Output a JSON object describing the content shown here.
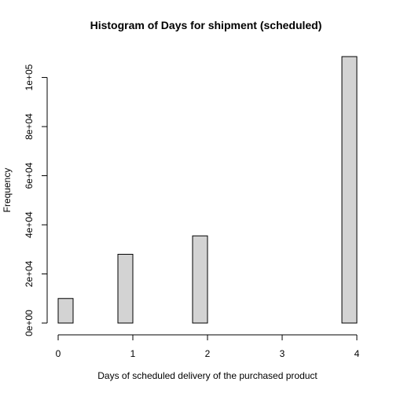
{
  "chart_data": {
    "type": "bar",
    "title": "Histogram of Days for shipment (scheduled)",
    "xlabel": "Days of scheduled delivery of the purchased product",
    "ylabel": "Frequency",
    "xlim": [
      0,
      4
    ],
    "ylim": [
      0,
      108500
    ],
    "x_ticks": [
      0,
      1,
      2,
      3,
      4
    ],
    "x_tick_labels": [
      "0",
      "1",
      "2",
      "3",
      "4"
    ],
    "y_ticks": [
      0,
      20000,
      40000,
      60000,
      80000,
      100000
    ],
    "y_tick_labels": [
      "0e+00",
      "2e+04",
      "4e+04",
      "6e+04",
      "8e+04",
      "1e+05"
    ],
    "bin_width": 0.2,
    "bins": [
      {
        "start": 0.0,
        "end": 0.2,
        "value": 10000
      },
      {
        "start": 0.8,
        "end": 1.0,
        "value": 28000
      },
      {
        "start": 1.8,
        "end": 2.0,
        "value": 35500
      },
      {
        "start": 3.8,
        "end": 4.0,
        "value": 108500
      }
    ],
    "grid": false,
    "legend": "none",
    "bar_color": "#d3d3d3",
    "edge_color": "#000000"
  }
}
